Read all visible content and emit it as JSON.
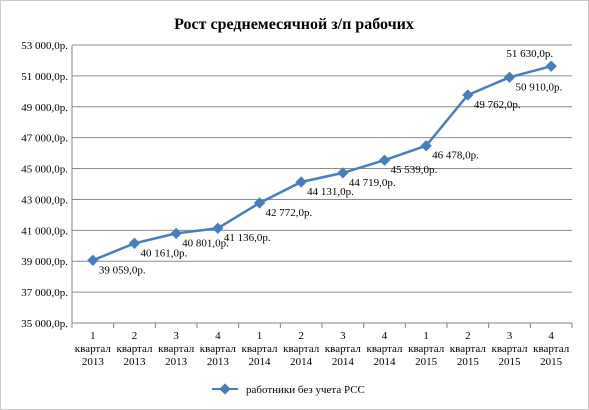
{
  "chart_data": {
    "type": "line",
    "title": "Рост среднемесячной з/п рабочих",
    "xlabel": "",
    "ylabel": "",
    "categories": [
      [
        "1",
        "квартал",
        "2013"
      ],
      [
        "2",
        "квартал",
        "2013"
      ],
      [
        "3",
        "квартал",
        "2013"
      ],
      [
        "4",
        "квартал",
        "2013"
      ],
      [
        "1",
        "квартал",
        "2014"
      ],
      [
        "2",
        "квартал",
        "2014"
      ],
      [
        "3",
        "квартал",
        "2014"
      ],
      [
        "4",
        "квартал",
        "2014"
      ],
      [
        "1",
        "квартал",
        "2015"
      ],
      [
        "2",
        "квартал",
        "2015"
      ],
      [
        "3",
        "квартал",
        "2015"
      ],
      [
        "4",
        "квартал",
        "2015"
      ]
    ],
    "series": [
      {
        "name": "работники без учета РСС",
        "values": [
          39059,
          40161,
          40801,
          41136,
          42772,
          44131,
          44719,
          45539,
          46478,
          49762,
          50910,
          51630
        ],
        "data_labels": [
          "39 059,0р.",
          "40 161,0р.",
          "40 801,0р.",
          "41 136,0р.",
          "42 772,0р.",
          "44 131,0р.",
          "44 719,0р.",
          "45 539,0р.",
          "46 478,0р.",
          "49 762,0р.",
          "50 910,0р.",
          "51 630,0р."
        ]
      }
    ],
    "ylim": [
      35000,
      53000
    ],
    "yticks": [
      35000,
      37000,
      39000,
      41000,
      43000,
      45000,
      47000,
      49000,
      51000,
      53000
    ],
    "ytick_labels": [
      "35 000,0р.",
      "37 000,0р.",
      "39 000,0р.",
      "41 000,0р.",
      "43 000,0р.",
      "45 000,0р.",
      "47 000,0р.",
      "49 000,0р.",
      "51 000,0р.",
      "53 000,0р."
    ],
    "grid": true,
    "legend": "bottom",
    "color": "#4a7ebb"
  }
}
